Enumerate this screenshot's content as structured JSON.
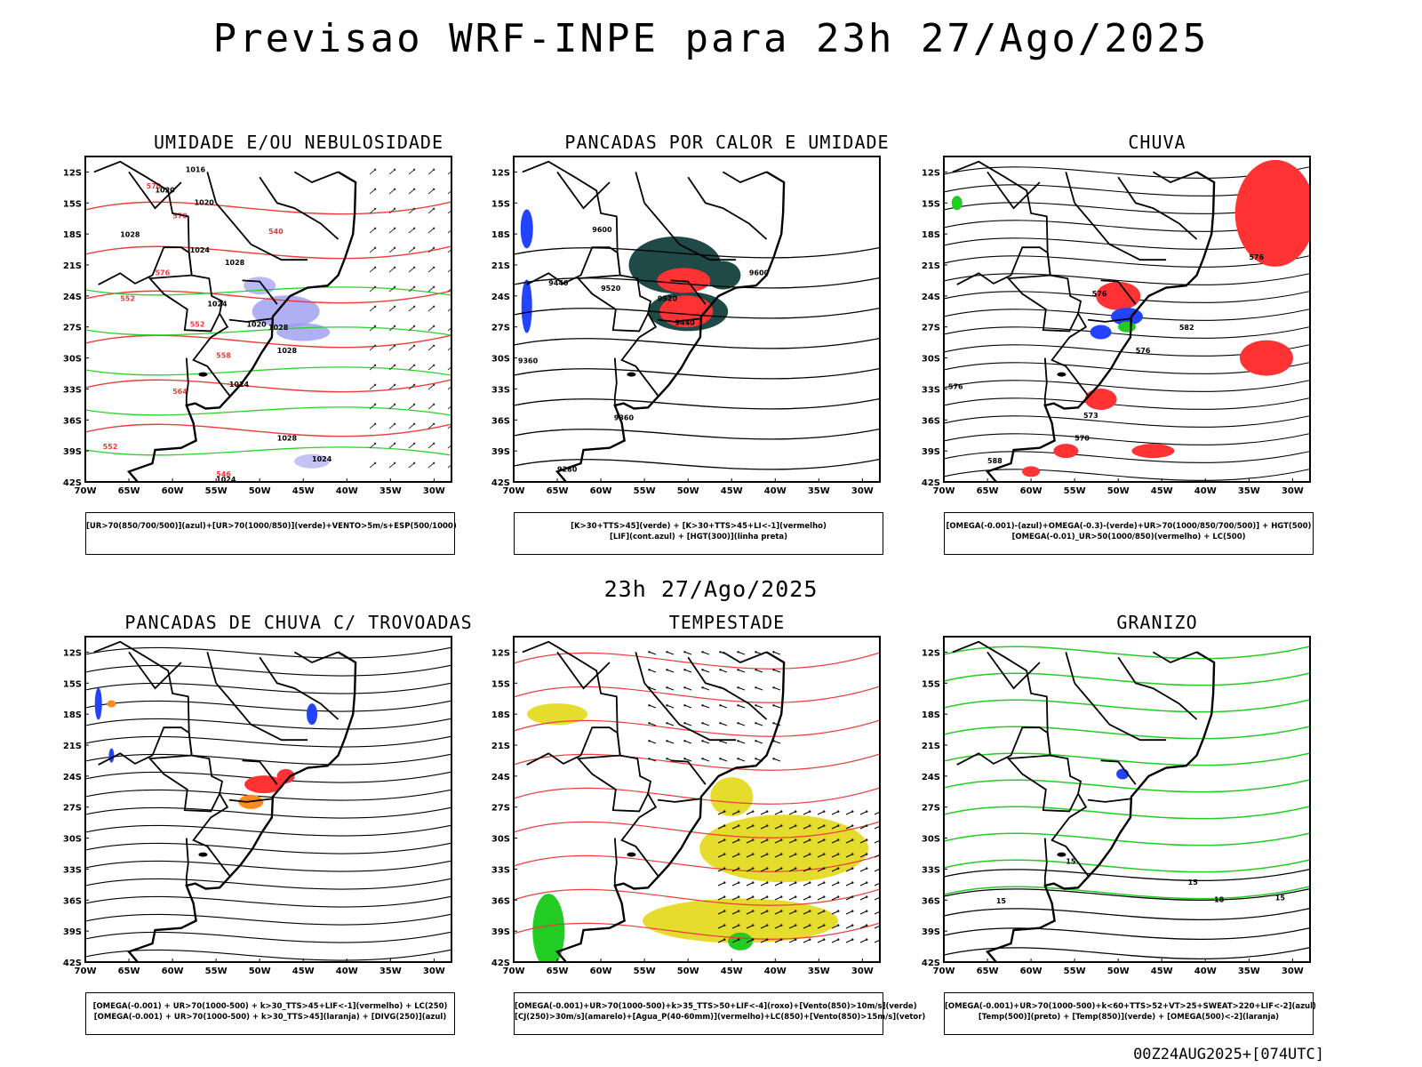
{
  "title": "Previsao WRF-INPE  para 23h 27/Ago/2025",
  "subtitle": "23h 27/Ago/2025",
  "footer": "00Z24AUG2025+[074UTC]",
  "axes": {
    "lat_labels": [
      "12S",
      "15S",
      "18S",
      "21S",
      "24S",
      "27S",
      "30S",
      "33S",
      "36S",
      "39S",
      "42S"
    ],
    "lon_labels": [
      "70W",
      "65W",
      "60W",
      "55W",
      "50W",
      "45W",
      "40W",
      "35W",
      "30W"
    ]
  },
  "colors": {
    "humidity_blue": "#9b9bf0",
    "green": "#22cc22",
    "red": "#ff3333",
    "dark_teal": "#1f4a47",
    "yellow": "#e6dc2e",
    "blue": "#2244ff",
    "orange": "#ff8c1a"
  },
  "panels": [
    {
      "title": "UMIDADE E/OU NEBULOSIDADE",
      "legend": [
        "[UR>70(850/700/500)](azul)+[UR>70(1000/850)](verde)+VENTO>5m/s+ESP(500/1000)"
      ],
      "contour_labels": [
        "1016",
        "1020",
        "1020",
        "1028",
        "1024",
        "1028",
        "1020",
        "1024",
        "1028",
        "1028",
        "1024",
        "1028",
        "1024",
        "1024",
        "570",
        "576",
        "552",
        "558",
        "564",
        "552",
        "546",
        "552",
        "570",
        "540"
      ]
    },
    {
      "title": "PANCADAS POR CALOR E UMIDADE",
      "legend": [
        "[K>30+TTS>45](verde) + [K>30+TTS>45+LI<-1](vermelho)",
        "[LIF](cont.azul) + [HGT(300)](linha preta)"
      ],
      "contour_labels": [
        "9600",
        "9520",
        "9440",
        "9520",
        "9440",
        "9600",
        "9360",
        "9360",
        "9280"
      ]
    },
    {
      "title": "CHUVA",
      "legend": [
        "[OMEGA(-0.001)-(azul)+OMEGA(-0.3)-(verde)+UR>70(1000/850/700/500)] + HGT(500)",
        "[OMEGA(-0.01)_UR>50(1000/850)(vermelho) + LC(500)"
      ],
      "contour_labels": [
        "576",
        "582",
        "576",
        "576",
        "573",
        "570",
        "588",
        "576"
      ]
    },
    {
      "title": "PANCADAS DE CHUVA C/ TROVOADAS",
      "legend": [
        "[OMEGA(-0.001) + UR>70(1000-500) + k>30_TTS>45+LIF<-1](vermelho) + LC(250)",
        "[OMEGA(-0.001) + UR>70(1000-500) + k>30_TTS>45](laranja) + [DIVG(250)](azul)"
      ],
      "contour_labels": []
    },
    {
      "title": "TEMPESTADE",
      "legend": [
        "[OMEGA(-0.001)+UR>70(1000-500)+k>35_TTS>50+LIF<-4](roxo)+[Vento(850)>10m/s](verde)",
        "[CJ(250)>30m/s](amarelo)+[Agua_P(40-60mm)](vermelho)+LC(850)+[Vento(850)>15m/s](vetor)"
      ],
      "contour_labels": []
    },
    {
      "title": "GRANIZO",
      "legend": [
        "[OMEGA(-0.001)+UR>70(1000-500)+k<60+TTS>52+VT>25+SWEAT>220+LIF<-2](azul)",
        "[Temp(500)](preto) + [Temp(850)](verde) + [OMEGA(500)<-2](laranja)"
      ],
      "contour_labels": [
        "15",
        "15",
        "15",
        "15",
        "18"
      ]
    }
  ]
}
